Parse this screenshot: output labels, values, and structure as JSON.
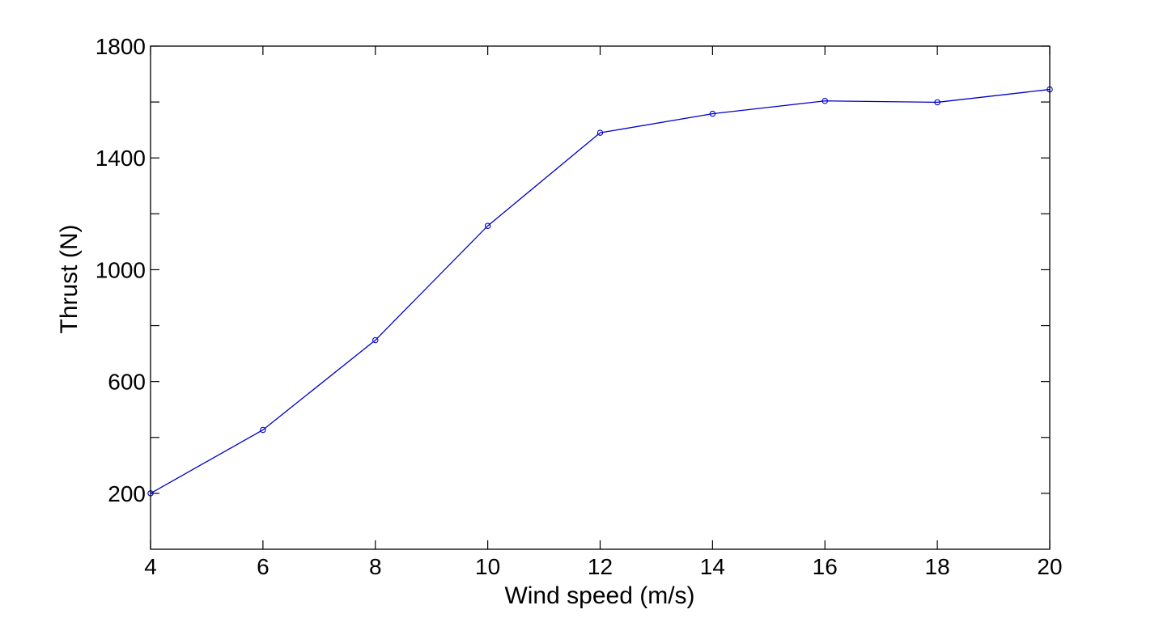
{
  "chart_data": {
    "type": "line",
    "title": "",
    "xlabel": "Wind speed (m/s)",
    "ylabel": "Thrust (N)",
    "xlim": [
      4,
      20
    ],
    "ylim": [
      0,
      1800
    ],
    "x_ticks": [
      4,
      6,
      8,
      10,
      12,
      14,
      16,
      18,
      20
    ],
    "y_ticks": [
      200,
      600,
      1000,
      1400,
      1800
    ],
    "y_minor_ticks": [
      400,
      800,
      1200,
      1600
    ],
    "grid": false,
    "legend": "none",
    "series": [
      {
        "x": [
          4,
          6,
          8,
          10,
          12,
          14,
          16,
          18,
          20
        ],
        "y": [
          200,
          427,
          748,
          1157,
          1490,
          1558,
          1604,
          1599,
          1645
        ],
        "color": "#0000cc",
        "marker": "circle"
      }
    ]
  }
}
